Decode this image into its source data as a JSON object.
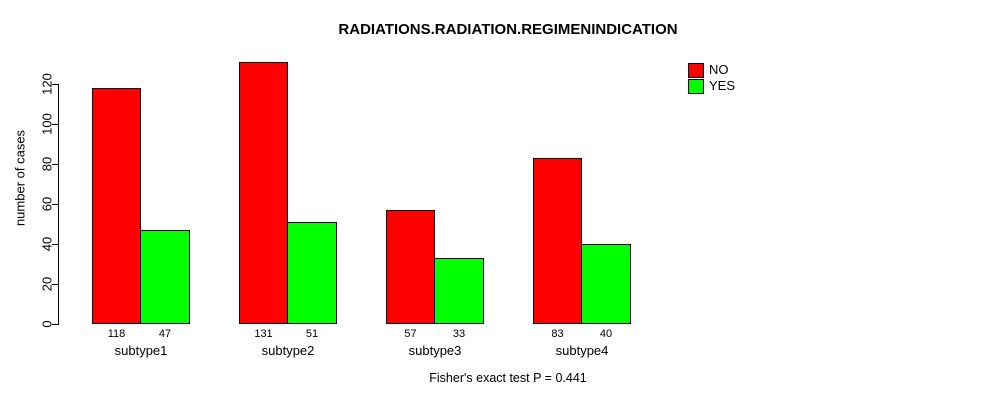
{
  "chart_data": {
    "type": "bar",
    "title": "RADIATIONS.RADIATION.REGIMENINDICATION",
    "ylabel": "number of cases",
    "xlabel": "",
    "caption": "Fisher's exact test P = 0.441",
    "categories": [
      "subtype1",
      "subtype2",
      "subtype3",
      "subtype4"
    ],
    "series": [
      {
        "name": "NO",
        "color": "#ff0000",
        "values": [
          118,
          131,
          57,
          83
        ]
      },
      {
        "name": "YES",
        "color": "#00ff00",
        "values": [
          47,
          51,
          33,
          40
        ]
      }
    ],
    "yticks": [
      0,
      20,
      40,
      60,
      80,
      100,
      120
    ],
    "ylim": [
      0,
      131
    ],
    "grid": false,
    "bar_value_labels": true,
    "legend_position": "top-right",
    "bar_border_color": "#000000",
    "background_color": "#ffffff",
    "text_color": "#000000"
  }
}
